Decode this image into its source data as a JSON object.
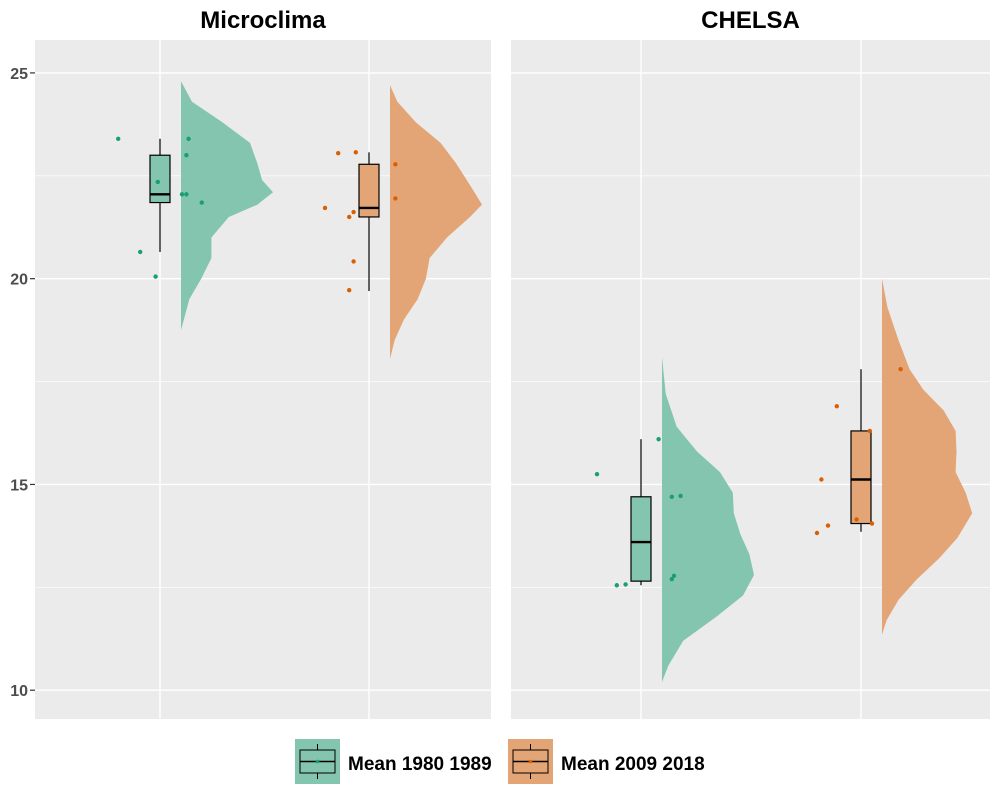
{
  "chart_data": {
    "type": "raincloud",
    "ylim": [
      9.3,
      25.8
    ],
    "yticks": [
      10,
      15,
      20,
      25
    ],
    "grid": true,
    "legend_position": "bottom",
    "series": [
      {
        "name": "Mean 1980 1989",
        "color": "#1b9e77",
        "fill": "#83c5ae"
      },
      {
        "name": "Mean 2009 2018",
        "color": "#d95f02",
        "fill": "#e4a576"
      }
    ],
    "panels": [
      {
        "title": "Microclima",
        "groups": [
          {
            "series_index": 0,
            "box": {
              "min": 20.65,
              "q1": 21.85,
              "median": 22.05,
              "q3": 23.0,
              "max": 23.4
            },
            "points": [
              {
                "x": -0.19,
                "y": 23.4
              },
              {
                "x": -0.09,
                "y": 20.65
              },
              {
                "x": -0.02,
                "y": 20.05
              },
              {
                "x": -0.01,
                "y": 22.35
              },
              {
                "x": 0.1,
                "y": 22.05
              },
              {
                "x": 0.12,
                "y": 22.05
              },
              {
                "x": 0.12,
                "y": 23.0
              },
              {
                "x": 0.13,
                "y": 23.4
              },
              {
                "x": 0.19,
                "y": 21.85
              }
            ],
            "density": [
              [
                18.75,
                0
              ],
              [
                19.0,
                0.03
              ],
              [
                19.5,
                0.09
              ],
              [
                20.0,
                0.22
              ],
              [
                20.5,
                0.33
              ],
              [
                21.0,
                0.33
              ],
              [
                21.5,
                0.52
              ],
              [
                21.8,
                0.83
              ],
              [
                22.1,
                1.0
              ],
              [
                22.4,
                0.88
              ],
              [
                22.8,
                0.83
              ],
              [
                23.3,
                0.75
              ],
              [
                23.8,
                0.45
              ],
              [
                24.3,
                0.12
              ],
              [
                24.8,
                0
              ]
            ]
          },
          {
            "series_index": 1,
            "box": {
              "min": 19.7,
              "q1": 21.5,
              "median": 21.72,
              "q3": 22.78,
              "max": 23.07
            },
            "points": [
              {
                "x": -0.2,
                "y": 21.72
              },
              {
                "x": -0.14,
                "y": 23.05
              },
              {
                "x": -0.09,
                "y": 21.5
              },
              {
                "x": -0.09,
                "y": 19.72
              },
              {
                "x": -0.07,
                "y": 20.42
              },
              {
                "x": -0.07,
                "y": 21.62
              },
              {
                "x": -0.06,
                "y": 23.07
              },
              {
                "x": 0.12,
                "y": 22.78
              },
              {
                "x": 0.12,
                "y": 21.95
              }
            ],
            "density": [
              [
                18.05,
                0
              ],
              [
                18.5,
                0.05
              ],
              [
                19.0,
                0.15
              ],
              [
                19.5,
                0.3
              ],
              [
                20.0,
                0.39
              ],
              [
                20.5,
                0.43
              ],
              [
                21.0,
                0.62
              ],
              [
                21.5,
                0.87
              ],
              [
                21.8,
                1.0
              ],
              [
                22.2,
                0.89
              ],
              [
                22.8,
                0.72
              ],
              [
                23.3,
                0.55
              ],
              [
                23.8,
                0.28
              ],
              [
                24.3,
                0.08
              ],
              [
                24.7,
                0
              ]
            ]
          }
        ]
      },
      {
        "title": "CHELSA",
        "groups": [
          {
            "series_index": 0,
            "box": {
              "min": 12.55,
              "q1": 12.65,
              "median": 13.6,
              "q3": 14.7,
              "max": 16.1
            },
            "points": [
              {
                "x": -0.2,
                "y": 15.25
              },
              {
                "x": -0.11,
                "y": 12.55
              },
              {
                "x": -0.07,
                "y": 12.57
              },
              {
                "x": 0.08,
                "y": 16.1
              },
              {
                "x": 0.14,
                "y": 14.7
              },
              {
                "x": 0.14,
                "y": 12.7
              },
              {
                "x": 0.15,
                "y": 12.78
              },
              {
                "x": 0.18,
                "y": 14.72
              }
            ],
            "density": [
              [
                10.2,
                0
              ],
              [
                10.6,
                0.07
              ],
              [
                11.2,
                0.23
              ],
              [
                11.8,
                0.6
              ],
              [
                12.3,
                0.88
              ],
              [
                12.8,
                1.0
              ],
              [
                13.3,
                0.95
              ],
              [
                13.8,
                0.85
              ],
              [
                14.3,
                0.78
              ],
              [
                14.8,
                0.77
              ],
              [
                15.3,
                0.63
              ],
              [
                15.8,
                0.38
              ],
              [
                16.4,
                0.16
              ],
              [
                17.2,
                0.04
              ],
              [
                18.1,
                0
              ]
            ]
          },
          {
            "series_index": 1,
            "box": {
              "min": 13.85,
              "q1": 14.05,
              "median": 15.12,
              "q3": 16.3,
              "max": 17.8
            },
            "points": [
              {
                "x": -0.2,
                "y": 13.82
              },
              {
                "x": -0.18,
                "y": 15.12
              },
              {
                "x": -0.15,
                "y": 14.0
              },
              {
                "x": -0.11,
                "y": 16.9
              },
              {
                "x": -0.02,
                "y": 14.15
              },
              {
                "x": 0.04,
                "y": 16.3
              },
              {
                "x": 0.05,
                "y": 14.05
              },
              {
                "x": 0.18,
                "y": 17.8
              }
            ],
            "density": [
              [
                11.35,
                0
              ],
              [
                11.7,
                0.05
              ],
              [
                12.2,
                0.18
              ],
              [
                12.7,
                0.38
              ],
              [
                13.2,
                0.62
              ],
              [
                13.7,
                0.82
              ],
              [
                14.3,
                0.98
              ],
              [
                14.8,
                0.91
              ],
              [
                15.3,
                0.8
              ],
              [
                15.8,
                0.81
              ],
              [
                16.3,
                0.8
              ],
              [
                16.8,
                0.67
              ],
              [
                17.3,
                0.45
              ],
              [
                17.8,
                0.3
              ],
              [
                18.5,
                0.18
              ],
              [
                19.3,
                0.06
              ],
              [
                20.0,
                0
              ]
            ]
          }
        ]
      }
    ]
  }
}
